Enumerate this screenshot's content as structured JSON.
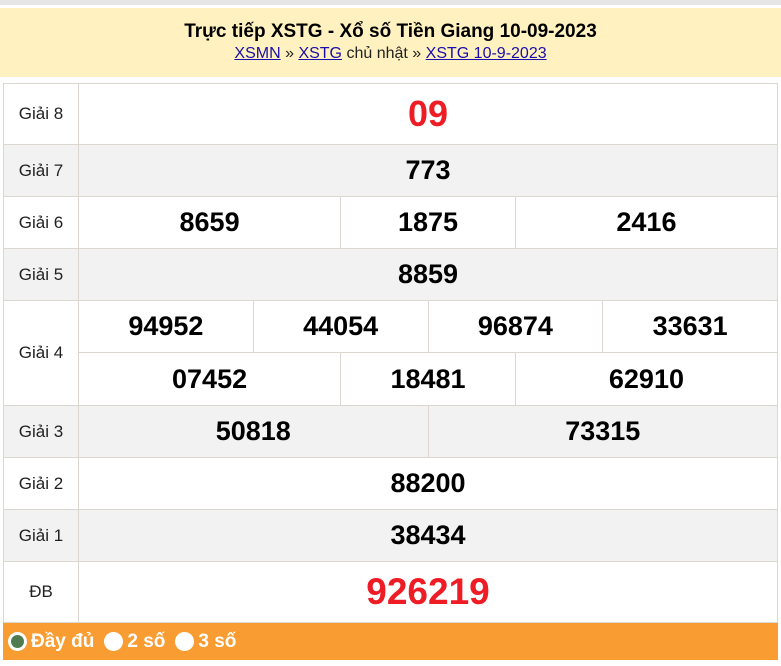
{
  "header": {
    "title": "Trực tiếp XSTG - Xổ số Tiền Giang 10-09-2023",
    "breadcrumb": [
      {
        "label": "XSMN"
      },
      {
        "sep": "»"
      },
      {
        "label": "XSTG"
      },
      {
        "text": "chủ nhật"
      },
      {
        "sep2": "»"
      },
      {
        "label": "XSTG 10-9-2023"
      }
    ]
  },
  "results": {
    "g8": {
      "label": "Giải 8",
      "values": [
        "09"
      ]
    },
    "g7": {
      "label": "Giải 7",
      "values": [
        "773"
      ]
    },
    "g6": {
      "label": "Giải 6",
      "values": [
        "8659",
        "1875",
        "2416"
      ]
    },
    "g5": {
      "label": "Giải 5",
      "values": [
        "8859"
      ]
    },
    "g4": {
      "label": "Giải 4",
      "values": [
        "94952",
        "44054",
        "96874",
        "33631",
        "07452",
        "18481",
        "62910"
      ]
    },
    "g3": {
      "label": "Giải 3",
      "values": [
        "50818",
        "73315"
      ]
    },
    "g2": {
      "label": "Giải 2",
      "values": [
        "88200"
      ]
    },
    "g1": {
      "label": "Giải 1",
      "values": [
        "38434"
      ]
    },
    "db": {
      "label": "ĐB",
      "values": [
        "926219"
      ]
    }
  },
  "footer": {
    "options": [
      {
        "label": "Đầy đủ",
        "selected": true
      },
      {
        "label": "2 số",
        "selected": false
      },
      {
        "label": "3 số",
        "selected": false
      }
    ]
  },
  "colors": {
    "header_bg": "#fff2c0",
    "accent_red": "#ee1c25",
    "footer_bg": "#f99d32"
  }
}
